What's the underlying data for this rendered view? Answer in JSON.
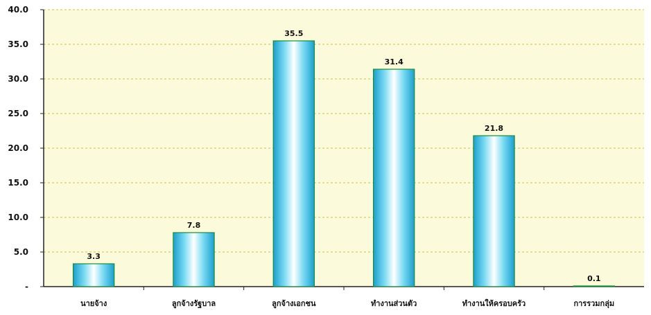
{
  "chart_data": {
    "type": "bar",
    "categories": [
      "นายจ้าง",
      "ลูกจ้างรัฐบาล",
      "ลูกจ้างเอกชน",
      "ทำงานส่วนตัว",
      "ทำงานให้ครอบครัว",
      "การรวมกลุ่ม"
    ],
    "values": [
      3.3,
      7.8,
      35.5,
      31.4,
      21.8,
      0.1
    ],
    "data_labels": [
      "3.3",
      "7.8",
      "35.5",
      "31.4",
      "21.8",
      "0.1"
    ],
    "y_ticks": [
      0,
      5,
      10,
      15,
      20,
      25,
      30,
      35,
      40
    ],
    "y_tick_labels": [
      "-",
      "5.0",
      "10.0",
      "15.0",
      "20.0",
      "25.0",
      "30.0",
      "35.0",
      "40.0"
    ],
    "ylim": [
      0,
      40
    ],
    "grid": true,
    "title": "",
    "xlabel": "",
    "ylabel": ""
  },
  "colors": {
    "plot_background": "#fbfbdb",
    "gridline": "#c9c24a",
    "axis": "#222222",
    "bar_edge": "#1b8b3a",
    "bar_center": "#ffffff",
    "bar_mid": "#7fdcf3",
    "bar_side": "#1a9fd0"
  }
}
